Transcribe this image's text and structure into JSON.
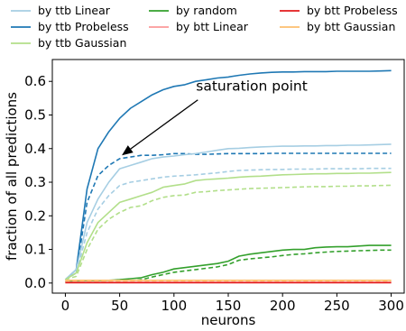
{
  "chart_data": {
    "type": "line",
    "xlabel": "neurons",
    "ylabel": "fraction of all predictions",
    "xlim": [
      -12,
      312
    ],
    "ylim": [
      -0.03,
      0.665
    ],
    "xticks": [
      0,
      50,
      100,
      150,
      200,
      250,
      300
    ],
    "yticks": [
      0.0,
      0.1,
      0.2,
      0.3,
      0.4,
      0.5,
      0.6
    ],
    "grid": false,
    "legend_placement": "top, outside plot, 3 columns",
    "legend": [
      {
        "name": "by ttb Linear",
        "color": "#a6cee3"
      },
      {
        "name": "by random",
        "color": "#33a02c"
      },
      {
        "name": "by btt Probeless",
        "color": "#e31a1c"
      },
      {
        "name": "by ttb Probeless",
        "color": "#1f78b4"
      },
      {
        "name": "by btt Linear",
        "color": "#fb9a99"
      },
      {
        "name": "by btt Gaussian",
        "color": "#fdbf6f"
      },
      {
        "name": "by ttb Gaussian",
        "color": "#b2df8a"
      }
    ],
    "x": [
      0,
      10,
      20,
      30,
      40,
      50,
      60,
      70,
      80,
      90,
      100,
      110,
      120,
      130,
      140,
      150,
      160,
      170,
      180,
      190,
      200,
      210,
      220,
      230,
      240,
      250,
      260,
      270,
      280,
      290,
      300
    ],
    "series": [
      {
        "name": "ttb Probeless (solid)",
        "color": "#1f78b4",
        "dash": "solid",
        "values": [
          0.01,
          0.04,
          0.28,
          0.4,
          0.45,
          0.49,
          0.52,
          0.54,
          0.56,
          0.575,
          0.585,
          0.59,
          0.6,
          0.605,
          0.61,
          0.613,
          0.618,
          0.622,
          0.625,
          0.627,
          0.628,
          0.628,
          0.629,
          0.629,
          0.629,
          0.63,
          0.63,
          0.63,
          0.63,
          0.631,
          0.632
        ]
      },
      {
        "name": "ttb Probeless (dashed)",
        "color": "#1f78b4",
        "dash": "dashed",
        "values": [
          0.01,
          0.03,
          0.24,
          0.32,
          0.35,
          0.37,
          0.375,
          0.38,
          0.38,
          0.382,
          0.385,
          0.385,
          0.383,
          0.383,
          0.384,
          0.385,
          0.385,
          0.385,
          0.385,
          0.386,
          0.386,
          0.386,
          0.386,
          0.386,
          0.386,
          0.386,
          0.386,
          0.386,
          0.386,
          0.386,
          0.386
        ]
      },
      {
        "name": "ttb Linear (solid)",
        "color": "#a6cee3",
        "dash": "solid",
        "values": [
          0.01,
          0.04,
          0.18,
          0.25,
          0.3,
          0.34,
          0.35,
          0.36,
          0.37,
          0.375,
          0.378,
          0.382,
          0.385,
          0.39,
          0.395,
          0.4,
          0.401,
          0.403,
          0.405,
          0.406,
          0.407,
          0.407,
          0.408,
          0.408,
          0.409,
          0.409,
          0.41,
          0.41,
          0.411,
          0.412,
          0.413
        ]
      },
      {
        "name": "ttb Linear (dashed)",
        "color": "#a6cee3",
        "dash": "dashed",
        "values": [
          0.01,
          0.03,
          0.15,
          0.22,
          0.26,
          0.29,
          0.3,
          0.305,
          0.31,
          0.315,
          0.318,
          0.32,
          0.322,
          0.325,
          0.328,
          0.332,
          0.335,
          0.336,
          0.337,
          0.338,
          0.338,
          0.339,
          0.339,
          0.339,
          0.34,
          0.34,
          0.34,
          0.34,
          0.341,
          0.341,
          0.341
        ]
      },
      {
        "name": "ttb Gaussian (solid)",
        "color": "#b2df8a",
        "dash": "solid",
        "values": [
          0.01,
          0.03,
          0.12,
          0.18,
          0.21,
          0.24,
          0.25,
          0.26,
          0.27,
          0.285,
          0.29,
          0.295,
          0.305,
          0.308,
          0.31,
          0.312,
          0.315,
          0.317,
          0.318,
          0.32,
          0.322,
          0.323,
          0.324,
          0.325,
          0.325,
          0.326,
          0.326,
          0.327,
          0.327,
          0.328,
          0.329
        ]
      },
      {
        "name": "ttb Gaussian (dashed)",
        "color": "#b2df8a",
        "dash": "dashed",
        "values": [
          0.01,
          0.02,
          0.1,
          0.16,
          0.19,
          0.21,
          0.225,
          0.23,
          0.245,
          0.255,
          0.26,
          0.262,
          0.27,
          0.272,
          0.275,
          0.277,
          0.279,
          0.281,
          0.282,
          0.283,
          0.284,
          0.285,
          0.286,
          0.287,
          0.287,
          0.288,
          0.288,
          0.289,
          0.289,
          0.29,
          0.291
        ]
      },
      {
        "name": "random (solid)",
        "color": "#33a02c",
        "dash": "solid",
        "values": [
          0.005,
          0.006,
          0.007,
          0.007,
          0.008,
          0.01,
          0.013,
          0.016,
          0.025,
          0.032,
          0.042,
          0.046,
          0.05,
          0.054,
          0.058,
          0.065,
          0.08,
          0.086,
          0.09,
          0.094,
          0.098,
          0.1,
          0.1,
          0.105,
          0.107,
          0.108,
          0.108,
          0.11,
          0.112,
          0.112,
          0.112
        ]
      },
      {
        "name": "random (dashed)",
        "color": "#33a02c",
        "dash": "dashed",
        "values": [
          0.004,
          0.004,
          0.005,
          0.005,
          0.006,
          0.006,
          0.007,
          0.01,
          0.018,
          0.025,
          0.032,
          0.036,
          0.04,
          0.044,
          0.048,
          0.055,
          0.068,
          0.072,
          0.075,
          0.078,
          0.082,
          0.085,
          0.087,
          0.09,
          0.092,
          0.094,
          0.095,
          0.096,
          0.097,
          0.098,
          0.098
        ]
      },
      {
        "name": "btt Gaussian (solid)",
        "color": "#fdbf6f",
        "dash": "solid",
        "values": [
          0.008,
          0.008,
          0.008,
          0.008,
          0.008,
          0.008,
          0.008,
          0.008,
          0.008,
          0.008,
          0.008,
          0.008,
          0.008,
          0.008,
          0.008,
          0.008,
          0.008,
          0.008,
          0.008,
          0.008,
          0.008,
          0.008,
          0.008,
          0.008,
          0.008,
          0.008,
          0.008,
          0.008,
          0.008,
          0.008,
          0.008
        ]
      },
      {
        "name": "btt Gaussian (dashed)",
        "color": "#fdbf6f",
        "dash": "dashed",
        "values": [
          0.006,
          0.006,
          0.006,
          0.006,
          0.006,
          0.006,
          0.006,
          0.006,
          0.006,
          0.006,
          0.006,
          0.006,
          0.006,
          0.006,
          0.006,
          0.006,
          0.006,
          0.006,
          0.006,
          0.006,
          0.006,
          0.006,
          0.006,
          0.006,
          0.006,
          0.006,
          0.006,
          0.006,
          0.006,
          0.006,
          0.006
        ]
      },
      {
        "name": "btt Linear (solid)",
        "color": "#fb9a99",
        "dash": "solid",
        "values": [
          0.002,
          0.002,
          0.002,
          0.002,
          0.002,
          0.002,
          0.002,
          0.002,
          0.002,
          0.002,
          0.002,
          0.002,
          0.002,
          0.002,
          0.002,
          0.002,
          0.002,
          0.002,
          0.002,
          0.002,
          0.002,
          0.002,
          0.002,
          0.002,
          0.002,
          0.002,
          0.002,
          0.002,
          0.002,
          0.002,
          0.002
        ]
      },
      {
        "name": "btt Probeless (solid)",
        "color": "#e31a1c",
        "dash": "solid",
        "values": [
          0.001,
          0.001,
          0.001,
          0.001,
          0.001,
          0.001,
          0.001,
          0.001,
          0.001,
          0.001,
          0.001,
          0.001,
          0.001,
          0.001,
          0.001,
          0.001,
          0.001,
          0.001,
          0.001,
          0.001,
          0.001,
          0.001,
          0.001,
          0.001,
          0.001,
          0.001,
          0.001,
          0.001,
          0.001,
          0.001,
          0.001
        ]
      }
    ],
    "annotation": {
      "text": "saturation point",
      "arrow_from": [
        122,
        0.545
      ],
      "arrow_to": [
        52,
        0.38
      ]
    }
  }
}
